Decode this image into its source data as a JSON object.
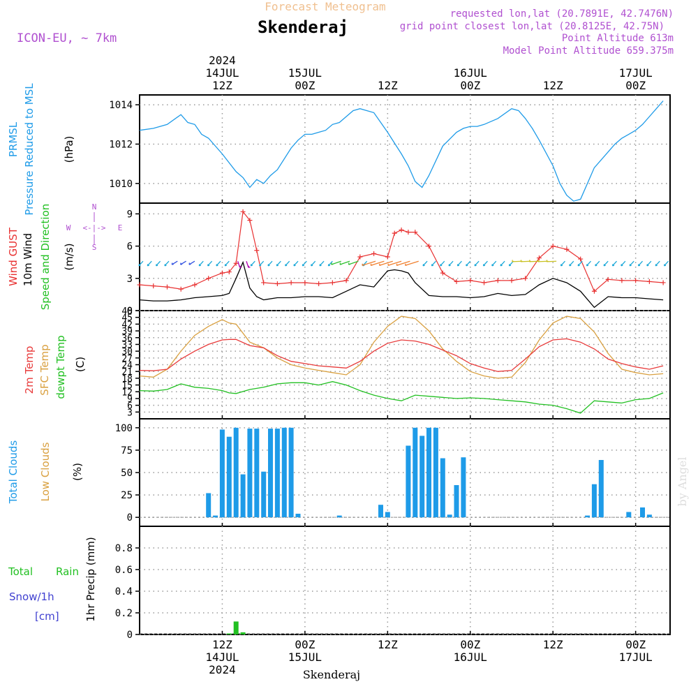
{
  "header": {
    "top_title": "Forecast Meteogram",
    "location": "Skenderaj",
    "model": "ICON-EU, ~ 7km",
    "requested": "requested lon,lat (20.7891E, 42.7476N)",
    "grid_point": "grid point closest lon,lat (20.8125E, 42.75N)",
    "point_alt": "Point Altitude 613m",
    "model_alt": "Model Point Altitude 659.375m",
    "footer_location": "Skenderaj",
    "watermark": "by Angel"
  },
  "time_axis": {
    "top_labels": [
      {
        "h": 12,
        "lines": [
          "2024",
          "14JUL",
          "12Z"
        ]
      },
      {
        "h": 24,
        "lines": [
          "15JUL",
          "00Z"
        ]
      },
      {
        "h": 36,
        "lines": [
          "12Z"
        ]
      },
      {
        "h": 48,
        "lines": [
          "16JUL",
          "00Z"
        ]
      },
      {
        "h": 60,
        "lines": [
          "12Z"
        ]
      },
      {
        "h": 72,
        "lines": [
          "17JUL",
          "00Z"
        ]
      }
    ],
    "bottom_labels": [
      {
        "h": 12,
        "lines": [
          "12Z",
          "14JUL",
          "2024"
        ]
      },
      {
        "h": 24,
        "lines": [
          "00Z",
          "15JUL"
        ]
      },
      {
        "h": 36,
        "lines": [
          "12Z"
        ]
      },
      {
        "h": 48,
        "lines": [
          "00Z",
          "16JUL"
        ]
      },
      {
        "h": 60,
        "lines": [
          "12Z"
        ]
      },
      {
        "h": 72,
        "lines": [
          "00Z",
          "17JUL"
        ]
      }
    ]
  },
  "panels": {
    "pressure": {
      "labels": [
        "PRMSL",
        "Pressure Reduced to MSL"
      ],
      "unit": "(hPa)",
      "ticks": [
        "1010",
        "1012",
        "1014"
      ]
    },
    "wind": {
      "labels": [
        "Wind GUST",
        "10m Wind",
        "Speed and Direction"
      ],
      "unit": "(m/s)",
      "ticks": [
        "0",
        "3",
        "6",
        "9"
      ],
      "compass": {
        "n": "N",
        "s": "S",
        "w": "W",
        "e": "E",
        "sym": "<-|->"
      }
    },
    "temp": {
      "labels": [
        "2m Temp",
        "SFC Temp",
        "dewpt Temp"
      ],
      "unit": "(C)",
      "ticks": [
        "3",
        "6",
        "9",
        "12",
        "15",
        "18",
        "21",
        "24",
        "27",
        "30",
        "33",
        "36",
        "39",
        "42",
        "45",
        "48"
      ]
    },
    "clouds": {
      "labels": [
        "Total Clouds",
        "Low Clouds"
      ],
      "unit": "(%)",
      "ticks": [
        "0",
        "25",
        "50",
        "75",
        "100"
      ]
    },
    "precip": {
      "labels": [
        "Total",
        "Rain",
        "Snow/1h",
        "[cm]"
      ],
      "unit": "1hr Precip (mm)",
      "ticks": [
        "0",
        "0.2",
        "0.4",
        "0.6",
        "0.8"
      ]
    }
  },
  "colors": {
    "pressure": "#1e9be8",
    "gust": "#e83030",
    "wind": "#000000",
    "t2m": "#e83a3a",
    "sfc": "#d9a040",
    "dew": "#22c022",
    "clouds": "#1e9be8",
    "precip": "#22c022",
    "model": "#b050d0",
    "title_orange": "#f0c090",
    "snow": "#4040d0"
  },
  "chart_data": [
    {
      "type": "line",
      "ylabel": "(hPa)",
      "x_hours": [
        0,
        2,
        4,
        6,
        7,
        8,
        9,
        10,
        12,
        14,
        15,
        16,
        17,
        18,
        19,
        20,
        22,
        23,
        24,
        25,
        26,
        27,
        28,
        29,
        30,
        31,
        32,
        34,
        36,
        38,
        39,
        40,
        41,
        42,
        44,
        46,
        47,
        48,
        49,
        50,
        52,
        54,
        55,
        56,
        57,
        58,
        60,
        61,
        62,
        63,
        64,
        65,
        66,
        68,
        69,
        70,
        71,
        72,
        73,
        74,
        75,
        76
      ],
      "series": [
        {
          "values": [
            1012.7,
            1012.8,
            1013.0,
            1013.5,
            1013.1,
            1013.0,
            1012.5,
            1012.3,
            1011.5,
            1010.6,
            1010.3,
            1009.8,
            1010.2,
            1010.0,
            1010.4,
            1010.7,
            1011.8,
            1012.2,
            1012.5,
            1012.5,
            1012.6,
            1012.7,
            1013.0,
            1013.1,
            1013.4,
            1013.7,
            1013.8,
            1013.6,
            1012.6,
            1011.5,
            1010.9,
            1010.1,
            1009.8,
            1010.4,
            1011.9,
            1012.6,
            1012.8,
            1012.9,
            1012.9,
            1013.0,
            1013.3,
            1013.8,
            1013.7,
            1013.3,
            1012.8,
            1012.2,
            1010.9,
            1010.0,
            1009.4,
            1009.1,
            1009.2,
            1010.0,
            1010.8,
            1011.6,
            1012.0,
            1012.3,
            1012.5,
            1012.7,
            1013.0,
            1013.4,
            1013.8,
            1014.2
          ]
        }
      ],
      "ylim": [
        1009.0,
        1014.5
      ]
    },
    {
      "type": "line",
      "ylabel": "(m/s)",
      "x_hours": [
        0,
        2,
        4,
        6,
        8,
        10,
        12,
        13,
        14,
        15,
        16,
        17,
        18,
        20,
        22,
        24,
        26,
        28,
        30,
        32,
        34,
        36,
        37,
        38,
        39,
        40,
        42,
        44,
        46,
        48,
        50,
        52,
        54,
        56,
        58,
        60,
        62,
        64,
        66,
        68,
        70,
        72,
        74,
        76
      ],
      "series": [
        {
          "values": [
            2.4,
            2.3,
            2.2,
            2.0,
            2.4,
            3.0,
            3.5,
            3.6,
            4.4,
            9.2,
            8.4,
            5.6,
            2.6,
            2.5,
            2.6,
            2.6,
            2.5,
            2.6,
            2.8,
            5.0,
            5.3,
            5.0,
            7.2,
            7.5,
            7.3,
            7.3,
            6.0,
            3.5,
            2.7,
            2.8,
            2.6,
            2.8,
            2.8,
            3.0,
            4.9,
            6.0,
            5.7,
            4.8,
            1.8,
            2.9,
            2.8,
            2.8,
            2.7,
            2.6
          ]
        },
        {
          "values": [
            1.0,
            0.9,
            0.9,
            1.0,
            1.2,
            1.3,
            1.4,
            1.6,
            3.0,
            4.5,
            2.1,
            1.3,
            1.0,
            1.2,
            1.2,
            1.3,
            1.3,
            1.2,
            1.8,
            2.4,
            2.2,
            3.7,
            3.8,
            3.7,
            3.5,
            2.6,
            1.4,
            1.3,
            1.3,
            1.2,
            1.3,
            1.6,
            1.4,
            1.5,
            2.4,
            3.0,
            2.6,
            1.8,
            0.3,
            1.3,
            1.2,
            1.2,
            1.1,
            1.0
          ]
        }
      ],
      "ylim": [
        0,
        10
      ]
    },
    {
      "type": "line",
      "ylabel": "(C)",
      "x_hours": [
        0,
        2,
        4,
        6,
        8,
        10,
        12,
        13,
        14,
        16,
        18,
        20,
        22,
        24,
        26,
        28,
        30,
        32,
        34,
        36,
        38,
        40,
        42,
        44,
        46,
        48,
        50,
        52,
        54,
        56,
        58,
        60,
        62,
        64,
        66,
        68,
        70,
        72,
        74,
        76
      ],
      "series": [
        {
          "values": [
            21.5,
            21.3,
            22.0,
            26.5,
            30.0,
            33.0,
            35.0,
            35.2,
            35.2,
            32.5,
            31.5,
            28.0,
            25.5,
            24.5,
            23.5,
            23.0,
            22.5,
            25.5,
            30.0,
            33.5,
            35.0,
            34.5,
            33.0,
            30.5,
            28.0,
            24.5,
            22.5,
            21.0,
            21.5,
            26.5,
            32.0,
            35.0,
            35.5,
            34.0,
            31.0,
            26.5,
            24.5,
            23.0,
            22.0,
            23.5
          ]
        },
        {
          "values": [
            19.0,
            18.5,
            22.0,
            30.0,
            37.0,
            41.0,
            44.0,
            42.5,
            42.0,
            34.0,
            31.5,
            27.0,
            24.0,
            22.5,
            21.5,
            20.5,
            19.5,
            24.0,
            34.0,
            41.0,
            45.5,
            44.5,
            39.0,
            31.0,
            25.5,
            21.0,
            19.0,
            18.0,
            18.5,
            25.0,
            35.0,
            42.5,
            45.5,
            44.5,
            38.5,
            29.0,
            22.0,
            20.5,
            19.5,
            20.0
          ]
        },
        {
          "values": [
            12.5,
            12.3,
            13.0,
            15.5,
            14.0,
            13.5,
            12.5,
            11.5,
            11.2,
            13.0,
            14.0,
            15.5,
            16.0,
            16.0,
            15.0,
            16.5,
            15.0,
            12.5,
            10.5,
            9.0,
            8.0,
            10.5,
            10.0,
            9.5,
            9.0,
            9.3,
            9.0,
            8.5,
            8.0,
            7.5,
            6.5,
            6.0,
            4.5,
            2.5,
            8.0,
            7.5,
            7.0,
            8.5,
            9.0,
            11.5
          ]
        }
      ],
      "ylim": [
        0,
        48
      ]
    },
    {
      "type": "bar",
      "ylabel": "(%)",
      "x_hours": [
        10,
        11,
        12,
        13,
        14,
        15,
        16,
        17,
        18,
        19,
        20,
        21,
        22,
        23,
        29,
        35,
        36,
        39,
        40,
        41,
        42,
        43,
        44,
        45,
        46,
        47,
        65,
        66,
        67,
        71,
        73,
        74
      ],
      "series": [
        {
          "values": [
            27,
            2,
            98,
            90,
            100,
            48,
            99,
            99,
            51,
            99,
            99,
            100,
            100,
            4,
            2,
            14,
            6,
            80,
            100,
            91,
            100,
            100,
            66,
            3,
            36,
            67,
            2,
            37,
            64,
            6,
            11,
            3
          ]
        }
      ],
      "ylim": [
        0,
        100
      ]
    },
    {
      "type": "bar",
      "ylabel": "1hr Precip (mm)",
      "x_hours": [
        13,
        14,
        15
      ],
      "series": [
        {
          "values": [
            0.01,
            0.12,
            0.02
          ]
        }
      ],
      "ylim": [
        0,
        1.0
      ]
    }
  ]
}
